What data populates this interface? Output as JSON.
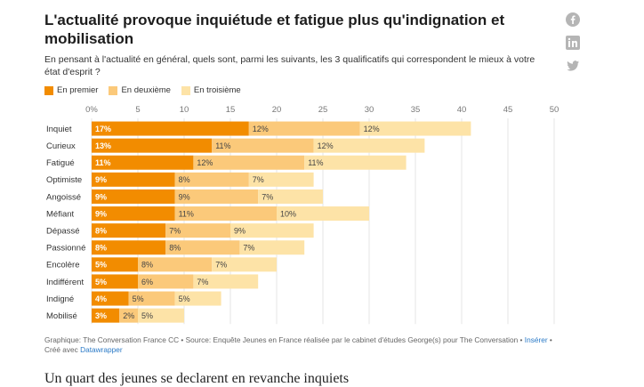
{
  "article": {
    "title": "L'actualité provoque inquiétude et fatigue plus qu'indignation et mobilisation",
    "subtitle": "En pensant à l'actualité en général, quels sont, parmi les suivants, les 3 qualificatifs qui correspondent le mieux à votre état d'esprit ?",
    "bottom_text": "Un quart des jeunes se declarent en revanche inquiets"
  },
  "footer": {
    "source_text": "Graphique: The Conversation France CC • Source: Enquête Jeunes en France réalisée par le cabinet d'études George(s) pour The Conversation • ",
    "insert_link": "Insérer",
    "sep": " •",
    "created_with": "Créé avec ",
    "datawrapper_link": "Datawrapper"
  },
  "social": {
    "icons": [
      "facebook-icon",
      "linkedin-icon",
      "twitter-icon"
    ],
    "color": "#b5b5b5"
  },
  "colors": {
    "first": "#f28c00",
    "second": "#fbc97a",
    "third": "#fde3a7"
  },
  "chart_data": {
    "type": "bar",
    "orientation": "horizontal",
    "stacked": true,
    "categories": [
      "Inquiet",
      "Curieux",
      "Fatigué",
      "Optimiste",
      "Angoissé",
      "Méfiant",
      "Dépassé",
      "Passionné",
      "Encolère",
      "Indifférent",
      "Indigné",
      "Mobilisé"
    ],
    "series": [
      {
        "name": "En premier",
        "values": [
          17,
          13,
          11,
          9,
          9,
          9,
          8,
          8,
          5,
          5,
          4,
          3
        ]
      },
      {
        "name": "En deuxième",
        "values": [
          12,
          11,
          12,
          8,
          9,
          11,
          7,
          8,
          8,
          6,
          5,
          2
        ]
      },
      {
        "name": "En troisième",
        "values": [
          12,
          12,
          11,
          7,
          7,
          10,
          9,
          7,
          7,
          7,
          5,
          5
        ]
      }
    ],
    "xlim": [
      0,
      50
    ],
    "xticks": [
      0,
      5,
      10,
      15,
      20,
      25,
      30,
      35,
      40,
      45,
      50
    ],
    "xtick_labels": [
      "0%",
      "5",
      "10",
      "15",
      "20",
      "25",
      "30",
      "35",
      "40",
      "45",
      "50"
    ],
    "value_suffix": "%",
    "legend_position": "top-left",
    "grid": true
  }
}
